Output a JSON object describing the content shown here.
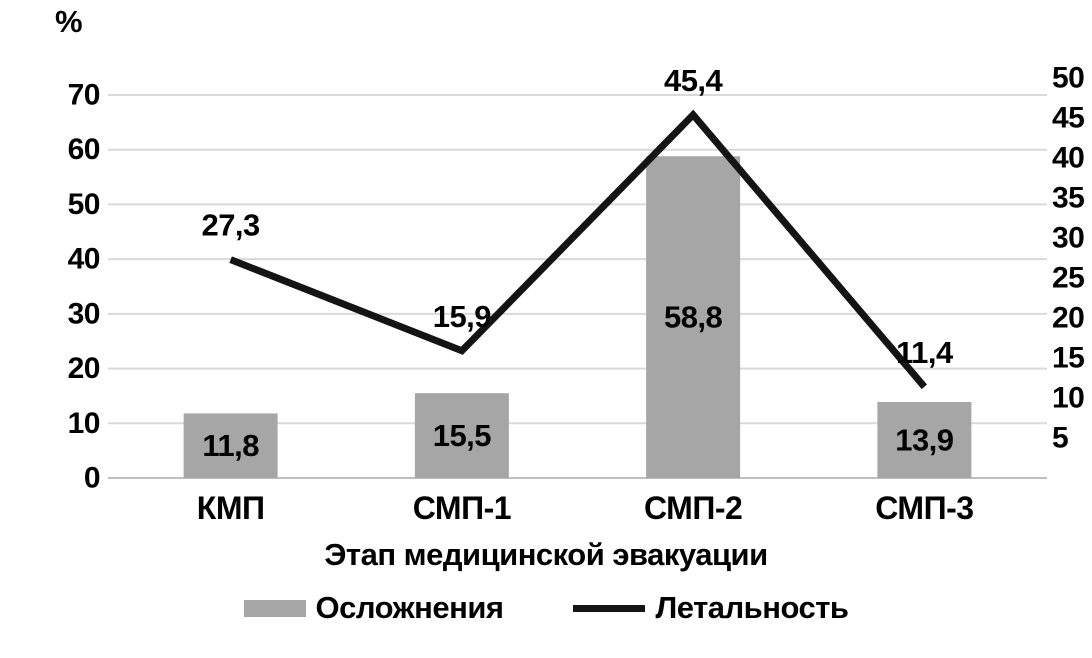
{
  "chart_data": {
    "type": "bar",
    "combo": "bar+line",
    "categories": [
      "КМП",
      "СМП-1",
      "СМП-2",
      "СМП-3"
    ],
    "series": [
      {
        "name": "Осложнения",
        "type": "bar",
        "axis": "left",
        "values": [
          11.8,
          15.5,
          58.8,
          13.9
        ],
        "value_labels": [
          "11,8",
          "15,5",
          "58,8",
          "13,9"
        ],
        "color": "#a6a6a6"
      },
      {
        "name": "Летальность",
        "type": "line",
        "axis": "right",
        "values": [
          27.3,
          15.9,
          45.4,
          11.4
        ],
        "value_labels": [
          "27,3",
          "15,9",
          "45,4",
          "11,4"
        ],
        "color": "#141414"
      }
    ],
    "xlabel": "Этап медицинской эвакуации",
    "left_axis": {
      "unit": "%",
      "min": 0,
      "max": 70,
      "ticks": [
        "0",
        "10",
        "20",
        "30",
        "40",
        "50",
        "60",
        "70"
      ]
    },
    "right_axis": {
      "min": 0,
      "max": 50,
      "ticks": [
        "5",
        "10",
        "15",
        "20",
        "25",
        "30",
        "35",
        "40",
        "45",
        "50"
      ]
    },
    "grid": true,
    "legend_position": "bottom",
    "colors": {
      "grid": "#d9d9d9",
      "axis_line": "#bfbfbf",
      "text": "#000000",
      "background": "#ffffff"
    }
  }
}
